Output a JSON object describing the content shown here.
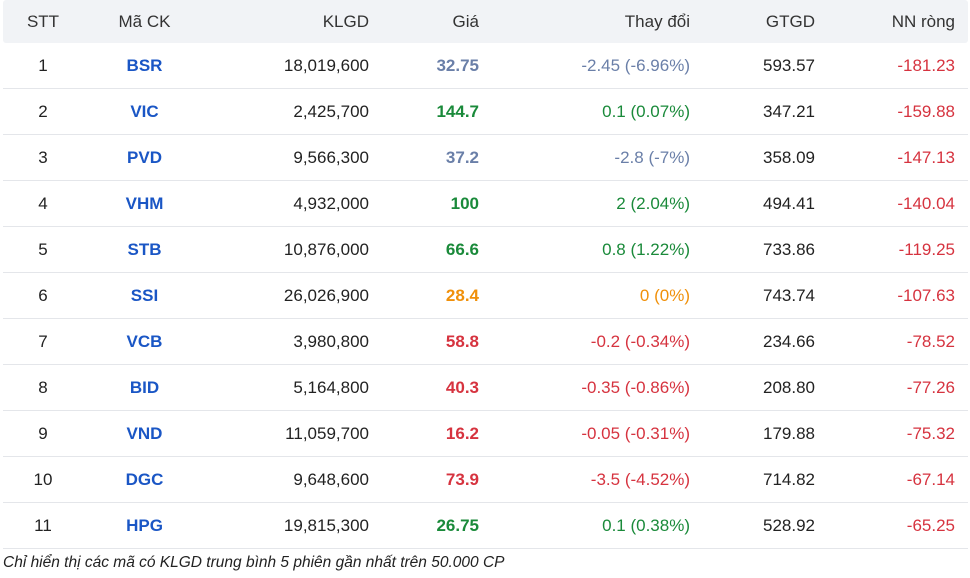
{
  "columns": {
    "stt": "STT",
    "ma": "Mã CK",
    "klgd": "KLGD",
    "gia": "Giá",
    "thaydoi": "Thay đổi",
    "gtgd": "GTGD",
    "nn": "NN ròng"
  },
  "colors": {
    "up": "#1a8a3a",
    "down": "#d6333f",
    "ref": "#f0900a",
    "muted": "#6a7fa8",
    "ticker": "#1a56c5"
  },
  "rows": [
    {
      "stt": "1",
      "ma": "BSR",
      "klgd": "18,019,600",
      "gia": "32.75",
      "thaydoi": "-2.45 (-6.96%)",
      "gtgd": "593.57",
      "nn": "-181.23",
      "status": "muted"
    },
    {
      "stt": "2",
      "ma": "VIC",
      "klgd": "2,425,700",
      "gia": "144.7",
      "thaydoi": "0.1 (0.07%)",
      "gtgd": "347.21",
      "nn": "-159.88",
      "status": "up"
    },
    {
      "stt": "3",
      "ma": "PVD",
      "klgd": "9,566,300",
      "gia": "37.2",
      "thaydoi": "-2.8 (-7%)",
      "gtgd": "358.09",
      "nn": "-147.13",
      "status": "muted"
    },
    {
      "stt": "4",
      "ma": "VHM",
      "klgd": "4,932,000",
      "gia": "100",
      "thaydoi": "2 (2.04%)",
      "gtgd": "494.41",
      "nn": "-140.04",
      "status": "up"
    },
    {
      "stt": "5",
      "ma": "STB",
      "klgd": "10,876,000",
      "gia": "66.6",
      "thaydoi": "0.8 (1.22%)",
      "gtgd": "733.86",
      "nn": "-119.25",
      "status": "up"
    },
    {
      "stt": "6",
      "ma": "SSI",
      "klgd": "26,026,900",
      "gia": "28.4",
      "thaydoi": "0 (0%)",
      "gtgd": "743.74",
      "nn": "-107.63",
      "status": "ref"
    },
    {
      "stt": "7",
      "ma": "VCB",
      "klgd": "3,980,800",
      "gia": "58.8",
      "thaydoi": "-0.2 (-0.34%)",
      "gtgd": "234.66",
      "nn": "-78.52",
      "status": "down"
    },
    {
      "stt": "8",
      "ma": "BID",
      "klgd": "5,164,800",
      "gia": "40.3",
      "thaydoi": "-0.35 (-0.86%)",
      "gtgd": "208.80",
      "nn": "-77.26",
      "status": "down"
    },
    {
      "stt": "9",
      "ma": "VND",
      "klgd": "11,059,700",
      "gia": "16.2",
      "thaydoi": "-0.05 (-0.31%)",
      "gtgd": "179.88",
      "nn": "-75.32",
      "status": "down"
    },
    {
      "stt": "10",
      "ma": "DGC",
      "klgd": "9,648,600",
      "gia": "73.9",
      "thaydoi": "-3.5 (-4.52%)",
      "gtgd": "714.82",
      "nn": "-67.14",
      "status": "down"
    },
    {
      "stt": "11",
      "ma": "HPG",
      "klgd": "19,815,300",
      "gia": "26.75",
      "thaydoi": "0.1 (0.38%)",
      "gtgd": "528.92",
      "nn": "-65.25",
      "status": "up"
    }
  ],
  "footnote": "Chỉ hiển thị các mã có KLGD trung bình 5 phiên gần nhất trên 50.000 CP"
}
